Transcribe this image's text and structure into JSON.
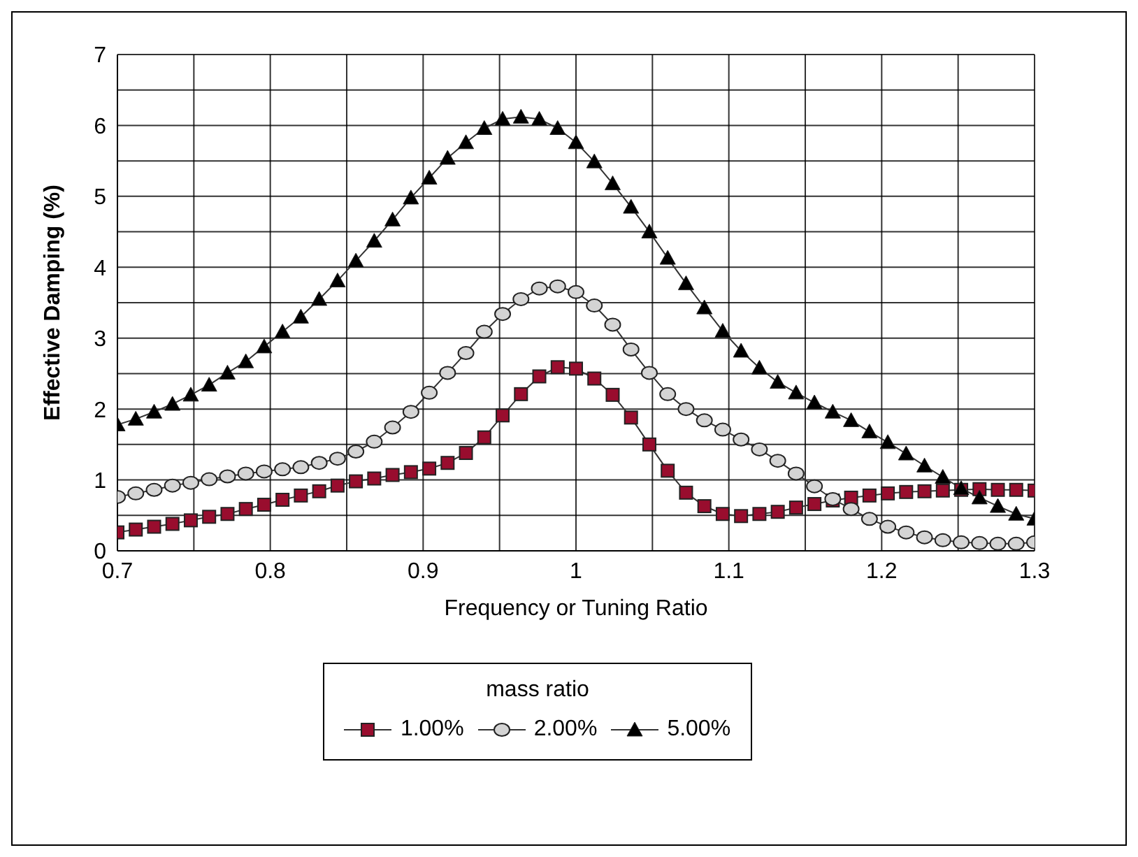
{
  "chart_data": {
    "type": "line",
    "xlabel": "Frequency  or Tuning Ratio",
    "ylabel": "Effective Damping (%)",
    "legend_title": "mass ratio",
    "legend": "bottom",
    "grid": true,
    "x": [
      0.7,
      0.712,
      0.724,
      0.736,
      0.748,
      0.76,
      0.772,
      0.784,
      0.796,
      0.808,
      0.82,
      0.832,
      0.844,
      0.856,
      0.868,
      0.88,
      0.892,
      0.904,
      0.916,
      0.928,
      0.94,
      0.952,
      0.964,
      0.976,
      0.988,
      1.0,
      1.012,
      1.024,
      1.036,
      1.048,
      1.06,
      1.072,
      1.084,
      1.096,
      1.108,
      1.12,
      1.132,
      1.144,
      1.156,
      1.168,
      1.18,
      1.192,
      1.204,
      1.216,
      1.228,
      1.24,
      1.252,
      1.264,
      1.276,
      1.288,
      1.3
    ],
    "xlim": [
      0.7,
      1.3
    ],
    "xticks": [
      0.7,
      {
        "value": 0.75,
        "label": null
      },
      0.8,
      {
        "value": 0.85,
        "label": null
      },
      0.9,
      {
        "value": 0.95,
        "label": null
      },
      {
        "value": 1.0,
        "label": "1"
      },
      {
        "value": 1.05,
        "label": null
      },
      1.1,
      {
        "value": 1.15,
        "label": null
      },
      1.2,
      {
        "value": 1.25,
        "label": null
      },
      1.3
    ],
    "ylim": [
      0,
      7
    ],
    "yticks": [
      0,
      {
        "value": 0.5,
        "label": null
      },
      1,
      {
        "value": 1.5,
        "label": null
      },
      2,
      {
        "value": 2.5,
        "label": null
      },
      3,
      {
        "value": 3.5,
        "label": null
      },
      4,
      {
        "value": 4.5,
        "label": null
      },
      5,
      {
        "value": 5.5,
        "label": null
      },
      6,
      {
        "value": 6.5,
        "label": null
      },
      7
    ],
    "series": [
      {
        "name": "1.00%",
        "color": "#990d2e",
        "marker": "square",
        "values": [
          0.26,
          0.3,
          0.34,
          0.38,
          0.43,
          0.48,
          0.52,
          0.59,
          0.65,
          0.72,
          0.78,
          0.84,
          0.92,
          0.98,
          1.02,
          1.07,
          1.11,
          1.16,
          1.24,
          1.38,
          1.6,
          1.91,
          2.21,
          2.46,
          2.59,
          2.57,
          2.43,
          2.2,
          1.88,
          1.5,
          1.13,
          0.82,
          0.63,
          0.52,
          0.49,
          0.52,
          0.55,
          0.61,
          0.66,
          0.71,
          0.75,
          0.78,
          0.81,
          0.83,
          0.84,
          0.85,
          0.86,
          0.87,
          0.86,
          0.86,
          0.85
        ]
      },
      {
        "name": "2.00%",
        "color": "#d4d4d4",
        "marker": "circle",
        "values": [
          0.76,
          0.81,
          0.86,
          0.92,
          0.96,
          1.01,
          1.05,
          1.09,
          1.12,
          1.15,
          1.18,
          1.24,
          1.3,
          1.4,
          1.54,
          1.74,
          1.96,
          2.23,
          2.51,
          2.79,
          3.09,
          3.34,
          3.55,
          3.7,
          3.73,
          3.65,
          3.46,
          3.19,
          2.84,
          2.51,
          2.21,
          2.0,
          1.84,
          1.71,
          1.57,
          1.43,
          1.27,
          1.09,
          0.91,
          0.73,
          0.59,
          0.45,
          0.34,
          0.26,
          0.19,
          0.15,
          0.12,
          0.11,
          0.1,
          0.1,
          0.12
        ]
      },
      {
        "name": "5.00%",
        "color": "#000000",
        "marker": "triangle",
        "values": [
          1.78,
          1.86,
          1.96,
          2.07,
          2.2,
          2.34,
          2.51,
          2.67,
          2.88,
          3.09,
          3.3,
          3.55,
          3.81,
          4.09,
          4.37,
          4.67,
          4.98,
          5.26,
          5.54,
          5.76,
          5.96,
          6.09,
          6.12,
          6.09,
          5.96,
          5.76,
          5.49,
          5.18,
          4.85,
          4.5,
          4.13,
          3.77,
          3.43,
          3.1,
          2.82,
          2.58,
          2.38,
          2.23,
          2.09,
          1.96,
          1.84,
          1.68,
          1.53,
          1.37,
          1.2,
          1.04,
          0.88,
          0.75,
          0.63,
          0.52,
          0.45
        ]
      }
    ]
  }
}
